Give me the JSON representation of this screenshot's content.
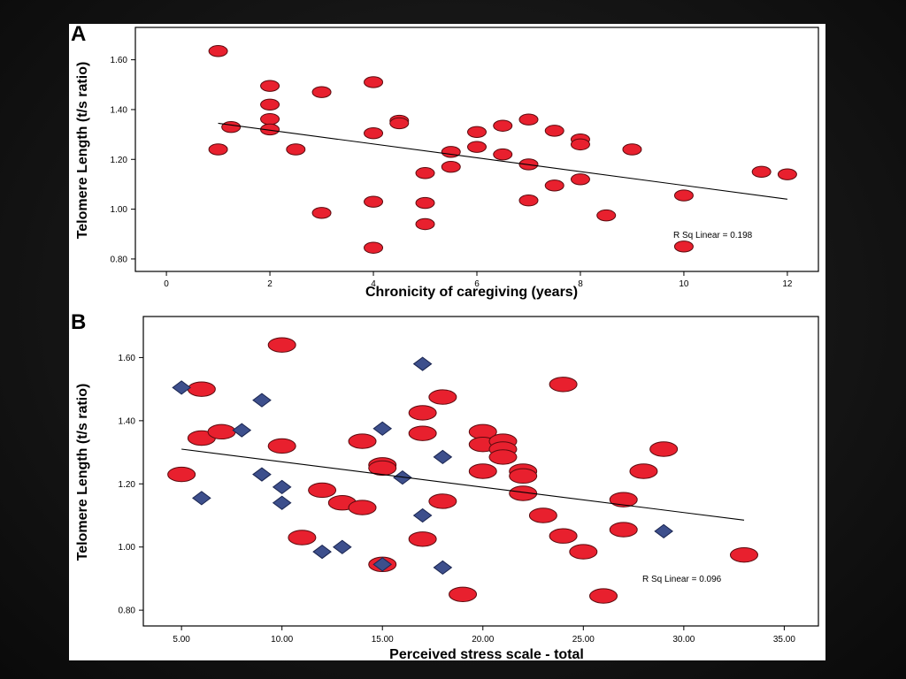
{
  "colors": {
    "background": "#111111",
    "image_background": "#ffffff",
    "circle_fill": "#e8202e",
    "circle_stroke": "#5a0a0e",
    "diamond_fill": "#3d4f8c",
    "diamond_stroke": "#1a2550",
    "line": "#000000"
  },
  "chart_data": [
    {
      "type": "scatter",
      "panel_label": "A",
      "xlabel": "Chronicity of caregiving (years)",
      "ylabel": "Telomere Length (t/s ratio)",
      "xlim": [
        -0.6,
        12.6
      ],
      "ylim": [
        0.75,
        1.73
      ],
      "xticks": [
        0,
        2,
        4,
        6,
        8,
        10,
        12
      ],
      "xtick_labels": [
        "0",
        "2",
        "4",
        "6",
        "8",
        "10",
        "12"
      ],
      "yticks": [
        0.8,
        1.0,
        1.2,
        1.4,
        1.6
      ],
      "ytick_labels": [
        "0.80",
        "1.00",
        "1.20",
        "1.40",
        "1.60"
      ],
      "r_squared_label": "R Sq Linear = 0.198",
      "fit_line": [
        [
          1.0,
          1.345
        ],
        [
          12.0,
          1.04
        ]
      ],
      "grid": false,
      "legend": "none",
      "series": [
        {
          "marker": "circle",
          "points": [
            [
              1.0,
              1.635
            ],
            [
              1.0,
              1.24
            ],
            [
              1.25,
              1.33
            ],
            [
              2.0,
              1.495
            ],
            [
              2.0,
              1.42
            ],
            [
              2.0,
              1.362
            ],
            [
              2.0,
              1.32
            ],
            [
              2.5,
              1.24
            ],
            [
              3.0,
              1.47
            ],
            [
              3.0,
              0.985
            ],
            [
              4.0,
              1.51
            ],
            [
              4.0,
              1.305
            ],
            [
              4.0,
              1.03
            ],
            [
              4.0,
              0.845
            ],
            [
              4.5,
              1.355
            ],
            [
              4.5,
              1.345
            ],
            [
              5.0,
              1.145
            ],
            [
              5.0,
              1.025
            ],
            [
              5.0,
              0.94
            ],
            [
              5.5,
              1.23
            ],
            [
              5.5,
              1.17
            ],
            [
              6.0,
              1.31
            ],
            [
              6.0,
              1.25
            ],
            [
              6.5,
              1.335
            ],
            [
              6.5,
              1.22
            ],
            [
              7.0,
              1.36
            ],
            [
              7.0,
              1.18
            ],
            [
              7.0,
              1.035
            ],
            [
              7.5,
              1.315
            ],
            [
              7.5,
              1.095
            ],
            [
              8.0,
              1.28
            ],
            [
              8.0,
              1.26
            ],
            [
              8.0,
              1.12
            ],
            [
              8.5,
              0.975
            ],
            [
              9.0,
              1.24
            ],
            [
              10.0,
              1.055
            ],
            [
              10.0,
              0.85
            ],
            [
              11.5,
              1.15
            ],
            [
              12.0,
              1.14
            ]
          ]
        }
      ]
    },
    {
      "type": "scatter",
      "panel_label": "B",
      "xlabel": "Perceived stress scale - total",
      "ylabel": "Telomere Length (t/s ratio)",
      "xlim": [
        3.1,
        36.7
      ],
      "ylim": [
        0.75,
        1.73
      ],
      "xticks": [
        5,
        10,
        15,
        20,
        25,
        30,
        35
      ],
      "xtick_labels": [
        "5.00",
        "10.00",
        "15.00",
        "20.00",
        "25.00",
        "30.00",
        "35.00"
      ],
      "yticks": [
        0.8,
        1.0,
        1.2,
        1.4,
        1.6
      ],
      "ytick_labels": [
        "0.80",
        "1.00",
        "1.20",
        "1.40",
        "1.60"
      ],
      "r_squared_label": "R Sq Linear = 0.096",
      "fit_line": [
        [
          5.0,
          1.31
        ],
        [
          33.0,
          1.085
        ]
      ],
      "grid": false,
      "legend": "none",
      "series": [
        {
          "marker": "circle",
          "points": [
            [
              5.0,
              1.23
            ],
            [
              6.0,
              1.5
            ],
            [
              6.0,
              1.345
            ],
            [
              7.0,
              1.365
            ],
            [
              10.0,
              1.64
            ],
            [
              10.0,
              1.32
            ],
            [
              11.0,
              1.03
            ],
            [
              12.0,
              1.18
            ],
            [
              13.0,
              1.14
            ],
            [
              14.0,
              1.125
            ],
            [
              14.0,
              1.335
            ],
            [
              15.0,
              1.26
            ],
            [
              15.0,
              1.25
            ],
            [
              15.0,
              0.945
            ],
            [
              17.0,
              1.425
            ],
            [
              17.0,
              1.36
            ],
            [
              17.0,
              1.025
            ],
            [
              18.0,
              1.475
            ],
            [
              18.0,
              1.145
            ],
            [
              19.0,
              0.85
            ],
            [
              20.0,
              1.365
            ],
            [
              20.0,
              1.325
            ],
            [
              20.0,
              1.24
            ],
            [
              21.0,
              1.335
            ],
            [
              21.0,
              1.31
            ],
            [
              21.0,
              1.285
            ],
            [
              22.0,
              1.24
            ],
            [
              22.0,
              1.225
            ],
            [
              22.0,
              1.17
            ],
            [
              23.0,
              1.1
            ],
            [
              24.0,
              1.515
            ],
            [
              24.0,
              1.035
            ],
            [
              25.0,
              0.985
            ],
            [
              26.0,
              0.845
            ],
            [
              27.0,
              1.15
            ],
            [
              27.0,
              1.055
            ],
            [
              28.0,
              1.24
            ],
            [
              29.0,
              1.31
            ],
            [
              33.0,
              0.975
            ]
          ]
        },
        {
          "marker": "diamond",
          "points": [
            [
              5.0,
              1.505
            ],
            [
              6.0,
              1.155
            ],
            [
              8.0,
              1.37
            ],
            [
              9.0,
              1.465
            ],
            [
              9.0,
              1.23
            ],
            [
              10.0,
              1.19
            ],
            [
              10.0,
              1.14
            ],
            [
              12.0,
              0.985
            ],
            [
              13.0,
              1.0
            ],
            [
              15.0,
              1.375
            ],
            [
              15.0,
              0.945
            ],
            [
              16.0,
              1.22
            ],
            [
              17.0,
              1.58
            ],
            [
              17.0,
              1.1
            ],
            [
              18.0,
              1.285
            ],
            [
              18.0,
              0.935
            ],
            [
              29.0,
              1.05
            ]
          ]
        }
      ]
    }
  ]
}
